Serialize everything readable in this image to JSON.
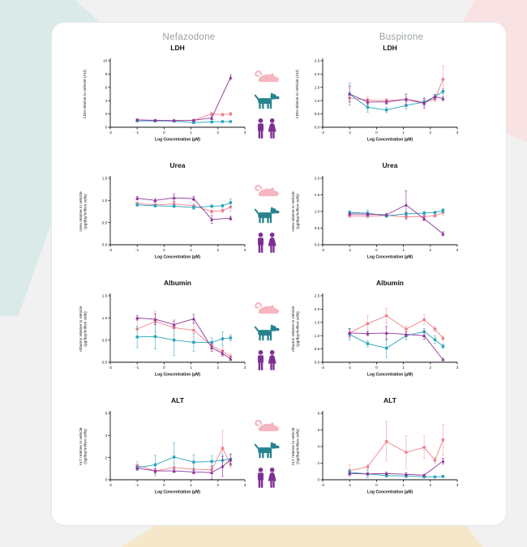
{
  "headers": {
    "left": "Nefazodone",
    "right": "Buspirone"
  },
  "palette": {
    "background": "#f1f1f1",
    "card": "#ffffff",
    "deco_teal": "#d9eae9",
    "deco_pink": "#f8e2e4",
    "deco_beige": "#f5e7c9",
    "header_gray": "#9aa0a5",
    "rat_series": "#f0808b",
    "dog_series": "#29a4ba",
    "human_series": "#8d3397",
    "rat_icon": "#f6b6c1",
    "dog_icon": "#27828e",
    "human_icon": "#7d3094"
  },
  "legend_icons": [
    {
      "name": "rat-icon",
      "species": "rat",
      "color": "#f6b6c1"
    },
    {
      "name": "dog-icon",
      "species": "dog",
      "color": "#27828e"
    },
    {
      "name": "human-pair-icon",
      "species": "human",
      "color": "#7d3094"
    }
  ],
  "chart_data": [
    {
      "type": "line",
      "drug": "Nefazodone",
      "title": "LDH",
      "xlabel": "Log Concentration (µM)",
      "ylabel_lines": [
        "LDH relative to Vehicle (AU)"
      ],
      "xlim": [
        -2,
        3
      ],
      "xticks": [
        "-2",
        "-1",
        "0",
        "1",
        "2",
        "3"
      ],
      "ylim": [
        0,
        10
      ],
      "yticks": [
        "0",
        "2",
        "4",
        "6",
        "8",
        "10"
      ],
      "grid": false,
      "legend": "species icons at right of figure row",
      "series": [
        {
          "name": "rat",
          "marker": "circle",
          "color": "#f0808b",
          "err_color": "#f6abb3",
          "x": [
            -1,
            -0.33,
            0.37,
            1.1,
            1.77,
            2.17,
            2.47
          ],
          "y": [
            1.1,
            1.0,
            1.0,
            1.05,
            2.0,
            1.9,
            2.0
          ],
          "err": [
            0.2,
            0.15,
            0.12,
            0.12,
            0.25,
            0.2,
            0.25
          ]
        },
        {
          "name": "dog",
          "marker": "square",
          "color": "#29a4ba",
          "err_color": "#59b9cb",
          "x": [
            -1,
            -0.33,
            0.37,
            1.1,
            1.77,
            2.17,
            2.47
          ],
          "y": [
            0.95,
            0.95,
            0.92,
            0.7,
            0.8,
            0.85,
            0.85
          ],
          "err": [
            0.12,
            0.1,
            0.1,
            0.1,
            0.1,
            0.1,
            0.1
          ]
        },
        {
          "name": "human",
          "marker": "triangle",
          "color": "#8d3397",
          "err_color": "#9a4aa3",
          "x": [
            -1,
            -0.33,
            0.37,
            1.1,
            1.77,
            2.47
          ],
          "y": [
            1.1,
            1.05,
            1.0,
            1.05,
            1.4,
            7.5
          ],
          "err": [
            0.12,
            0.1,
            0.1,
            0.1,
            0.25,
            0.35
          ]
        }
      ]
    },
    {
      "type": "line",
      "drug": "Buspirone",
      "title": "LDH",
      "xlabel": "Log Concentration (µM)",
      "ylabel_lines": [
        "LDH relative to Vehicle (AU)"
      ],
      "xlim": [
        -2,
        3
      ],
      "xticks": [
        "-2",
        "-1",
        "0",
        "1",
        "2",
        "3"
      ],
      "ylim": [
        0,
        2.5
      ],
      "yticks": [
        "0.0",
        "0.5",
        "1.0",
        "1.5",
        "2.0",
        "2.5"
      ],
      "grid": false,
      "series": [
        {
          "name": "rat",
          "marker": "circle",
          "color": "#f0808b",
          "err_color": "#f6abb3",
          "x": [
            -1,
            -0.33,
            0.37,
            1.1,
            1.77,
            2.17,
            2.47
          ],
          "y": [
            1.1,
            1.02,
            1.0,
            1.05,
            0.95,
            1.05,
            1.8
          ],
          "err": [
            0.12,
            0.15,
            0.08,
            0.08,
            0.1,
            0.08,
            0.5
          ]
        },
        {
          "name": "dog",
          "marker": "square",
          "color": "#29a4ba",
          "err_color": "#59b9cb",
          "x": [
            -1,
            -0.33,
            0.37,
            1.1,
            1.77,
            2.17,
            2.47
          ],
          "y": [
            1.25,
            0.75,
            0.65,
            0.82,
            0.95,
            1.15,
            1.35
          ],
          "err": [
            0.42,
            0.18,
            0.1,
            0.13,
            0.15,
            0.08,
            0.1
          ]
        },
        {
          "name": "human",
          "marker": "triangle",
          "color": "#8d3397",
          "err_color": "#9a4aa3",
          "x": [
            -1,
            -0.33,
            0.37,
            1.1,
            1.77,
            2.17,
            2.47
          ],
          "y": [
            1.25,
            0.95,
            0.95,
            1.05,
            0.9,
            1.15,
            1.08
          ],
          "err": [
            0.3,
            0.1,
            0.08,
            0.2,
            0.18,
            0.08,
            0.08
          ]
        }
      ]
    },
    {
      "type": "line",
      "drug": "Nefazodone",
      "title": "Urea",
      "xlabel": "Log Concentration (µM)",
      "ylabel_lines": [
        "Urea relative to Vehicle",
        "(µg/day/million cells)"
      ],
      "xlim": [
        -2,
        3
      ],
      "xticks": [
        "-2",
        "-1",
        "0",
        "1",
        "2",
        "3"
      ],
      "ylim": [
        0,
        1.5
      ],
      "yticks": [
        "0.0",
        "0.5",
        "1.0",
        "1.5"
      ],
      "grid": false,
      "series": [
        {
          "name": "rat",
          "marker": "circle",
          "color": "#f0808b",
          "err_color": "#f6abb3",
          "x": [
            -1,
            -0.33,
            0.37,
            1.1,
            1.77,
            2.17,
            2.47
          ],
          "y": [
            0.93,
            0.9,
            0.92,
            0.88,
            0.75,
            0.77,
            0.85
          ],
          "err": [
            0.03,
            0.03,
            0.05,
            0.06,
            0.04,
            0.04,
            0.09
          ]
        },
        {
          "name": "dog",
          "marker": "square",
          "color": "#29a4ba",
          "err_color": "#59b9cb",
          "x": [
            -1,
            -0.33,
            0.37,
            1.1,
            1.77,
            2.17,
            2.47
          ],
          "y": [
            0.9,
            0.88,
            0.87,
            0.84,
            0.87,
            0.88,
            0.95
          ],
          "err": [
            0.03,
            0.03,
            0.03,
            0.04,
            0.03,
            0.03,
            0.08
          ]
        },
        {
          "name": "human",
          "marker": "triangle",
          "color": "#8d3397",
          "err_color": "#9a4aa3",
          "x": [
            -1,
            -0.33,
            0.37,
            1.1,
            1.77,
            2.47
          ],
          "y": [
            1.05,
            1.0,
            1.06,
            1.04,
            0.57,
            0.6
          ],
          "err": [
            0.04,
            0.04,
            0.08,
            0.05,
            0.09,
            0.04
          ]
        }
      ]
    },
    {
      "type": "line",
      "drug": "Buspirone",
      "title": "Urea",
      "xlabel": "Log Concentration (µM)",
      "ylabel_lines": [
        "Urea relative to Vehicle",
        "(µg/day/million cells)"
      ],
      "xlim": [
        -2,
        3
      ],
      "xticks": [
        "-2",
        "-1",
        "0",
        "1",
        "2",
        "3"
      ],
      "ylim": [
        0,
        2
      ],
      "yticks": [
        "0.0",
        "0.5",
        "1.0",
        "1.5",
        "2.0"
      ],
      "grid": false,
      "series": [
        {
          "name": "rat",
          "marker": "circle",
          "color": "#f0808b",
          "err_color": "#f6abb3",
          "x": [
            -1,
            -0.33,
            0.37,
            1.1,
            1.77,
            2.17,
            2.47
          ],
          "y": [
            0.87,
            0.86,
            0.88,
            0.84,
            0.85,
            0.87,
            0.97
          ],
          "err": [
            0.05,
            0.06,
            0.04,
            0.04,
            0.04,
            0.04,
            0.08
          ]
        },
        {
          "name": "dog",
          "marker": "square",
          "color": "#29a4ba",
          "err_color": "#59b9cb",
          "x": [
            -1,
            -0.33,
            0.37,
            1.1,
            1.77,
            2.17,
            2.47
          ],
          "y": [
            0.97,
            0.95,
            0.87,
            0.93,
            0.95,
            0.97,
            1.03
          ],
          "err": [
            0.05,
            0.1,
            0.05,
            0.06,
            0.05,
            0.04,
            0.06
          ]
        },
        {
          "name": "human",
          "marker": "triangle",
          "color": "#8d3397",
          "err_color": "#9a4aa3",
          "x": [
            -1,
            -0.33,
            0.37,
            1.1,
            1.77,
            2.47
          ],
          "y": [
            0.93,
            0.92,
            0.9,
            1.2,
            0.78,
            0.33
          ],
          "err": [
            0.04,
            0.05,
            0.04,
            0.43,
            0.05,
            0.06
          ]
        }
      ]
    },
    {
      "type": "line",
      "drug": "Nefazodone",
      "title": "Albumin",
      "xlabel": "Log Concentration (µM)",
      "ylabel_lines": [
        "Albumin relative to Vehicle",
        "(µg/day/million cells)"
      ],
      "xlim": [
        -2,
        3
      ],
      "xticks": [
        "-2",
        "-1",
        "0",
        "1",
        "2",
        "3"
      ],
      "ylim": [
        0,
        1.5
      ],
      "yticks": [
        "0.0",
        "0.5",
        "1.0",
        "1.5"
      ],
      "grid": false,
      "series": [
        {
          "name": "rat",
          "marker": "circle",
          "color": "#f0808b",
          "err_color": "#f6abb3",
          "x": [
            -1,
            -0.33,
            0.37,
            1.1,
            1.77,
            2.17,
            2.47
          ],
          "y": [
            0.75,
            0.92,
            0.78,
            0.72,
            0.37,
            0.25,
            0.13
          ],
          "err": [
            0.2,
            0.23,
            0.18,
            0.15,
            0.1,
            0.09,
            0.06
          ]
        },
        {
          "name": "dog",
          "marker": "square",
          "color": "#29a4ba",
          "err_color": "#59b9cb",
          "x": [
            -1,
            -0.33,
            0.37,
            1.1,
            1.77,
            2.17,
            2.47
          ],
          "y": [
            0.57,
            0.58,
            0.5,
            0.45,
            0.45,
            0.53,
            0.55
          ],
          "err": [
            0.24,
            0.28,
            0.35,
            0.2,
            0.1,
            0.15,
            0.07
          ]
        },
        {
          "name": "human",
          "marker": "triangle",
          "color": "#8d3397",
          "err_color": "#9a4aa3",
          "x": [
            -1,
            -0.33,
            0.37,
            1.1,
            1.77,
            2.17,
            2.47
          ],
          "y": [
            1.0,
            0.97,
            0.85,
            0.98,
            0.33,
            0.2,
            0.07
          ],
          "err": [
            0.05,
            0.12,
            0.08,
            0.1,
            0.08,
            0.06,
            0.03
          ]
        }
      ]
    },
    {
      "type": "line",
      "drug": "Buspirone",
      "title": "Albumin",
      "xlabel": "Log Concentration (µM)",
      "ylabel_lines": [
        "Albumin relative to Vehicle",
        "(µg/day/million cells)"
      ],
      "xlim": [
        -2,
        3
      ],
      "xticks": [
        "-2",
        "-1",
        "0",
        "1",
        "2",
        "3"
      ],
      "ylim": [
        0,
        2.5
      ],
      "yticks": [
        "0.0",
        "0.5",
        "1.0",
        "1.5",
        "2.0",
        "2.5"
      ],
      "grid": false,
      "series": [
        {
          "name": "rat",
          "marker": "circle",
          "color": "#f0808b",
          "err_color": "#f6abb3",
          "x": [
            -1,
            -0.33,
            0.37,
            1.1,
            1.77,
            2.17,
            2.47
          ],
          "y": [
            1.1,
            1.45,
            1.75,
            1.25,
            1.6,
            1.25,
            0.9
          ],
          "err": [
            0.15,
            0.3,
            0.28,
            0.12,
            0.18,
            0.1,
            0.08
          ]
        },
        {
          "name": "dog",
          "marker": "square",
          "color": "#29a4ba",
          "err_color": "#59b9cb",
          "x": [
            -1,
            -0.33,
            0.37,
            1.1,
            1.77,
            2.17,
            2.47
          ],
          "y": [
            1.05,
            0.7,
            0.53,
            1.0,
            1.15,
            0.85,
            0.6
          ],
          "err": [
            0.22,
            0.12,
            0.35,
            0.15,
            0.12,
            0.15,
            0.08
          ]
        },
        {
          "name": "human",
          "marker": "triangle",
          "color": "#8d3397",
          "err_color": "#9a4aa3",
          "x": [
            -1,
            -0.33,
            0.37,
            1.1,
            1.77,
            2.47
          ],
          "y": [
            1.1,
            1.08,
            1.1,
            1.05,
            1.0,
            0.1
          ],
          "err": [
            0.15,
            0.08,
            0.25,
            0.1,
            0.13,
            0.04
          ]
        }
      ]
    },
    {
      "type": "line",
      "drug": "Nefazodone",
      "title": "ALT",
      "xlabel": "Log Concentration (µM)",
      "ylabel_lines": [
        "ALT relative to vehicle",
        "(ng/day/million cells)"
      ],
      "xlim": [
        -2,
        3
      ],
      "xticks": [
        "-2",
        "-1",
        "0",
        "1",
        "2",
        "3"
      ],
      "ylim": [
        0,
        6
      ],
      "yticks": [
        "0",
        "2",
        "4",
        "6"
      ],
      "grid": false,
      "series": [
        {
          "name": "rat",
          "marker": "circle",
          "color": "#f0808b",
          "err_color": "#f6abb3",
          "x": [
            -1,
            -0.33,
            0.37,
            1.1,
            1.77,
            2.17,
            2.47
          ],
          "y": [
            1.3,
            0.8,
            1.1,
            0.95,
            0.9,
            2.85,
            1.4
          ],
          "err": [
            0.35,
            0.5,
            0.4,
            0.45,
            0.35,
            1.6,
            0.3
          ]
        },
        {
          "name": "dog",
          "marker": "square",
          "color": "#29a4ba",
          "err_color": "#59b9cb",
          "x": [
            -1,
            -0.33,
            0.37,
            1.1,
            1.77,
            2.17,
            2.47
          ],
          "y": [
            1.1,
            1.35,
            2.05,
            1.6,
            1.65,
            1.75,
            1.85
          ],
          "err": [
            0.25,
            0.85,
            1.3,
            0.65,
            0.5,
            0.5,
            0.45
          ]
        },
        {
          "name": "human",
          "marker": "triangle",
          "color": "#8d3397",
          "err_color": "#9a4aa3",
          "x": [
            -1,
            -0.33,
            0.37,
            1.1,
            1.77,
            2.17,
            2.47
          ],
          "y": [
            1.05,
            0.8,
            0.8,
            0.7,
            0.65,
            1.2,
            1.8
          ],
          "err": [
            0.15,
            0.2,
            0.15,
            0.15,
            0.6,
            0.9,
            0.5
          ]
        }
      ]
    },
    {
      "type": "line",
      "drug": "Buspirone",
      "title": "ALT",
      "xlabel": "Log Concentration (µM)",
      "ylabel_lines": [
        "ALT relative to vehicle",
        "(ng/day/million cells)"
      ],
      "xlim": [
        -2,
        3
      ],
      "xticks": [
        "-2",
        "-1",
        "0",
        "1",
        "2",
        "3"
      ],
      "ylim": [
        0,
        8
      ],
      "yticks": [
        "0",
        "2",
        "4",
        "6",
        "8"
      ],
      "grid": false,
      "series": [
        {
          "name": "rat",
          "marker": "circle",
          "color": "#f0808b",
          "err_color": "#f6abb3",
          "x": [
            -1,
            -0.33,
            0.37,
            1.1,
            1.77,
            2.17,
            2.47
          ],
          "y": [
            1.1,
            1.55,
            4.6,
            3.3,
            3.9,
            2.35,
            4.8
          ],
          "err": [
            0.75,
            0.3,
            2.35,
            2.0,
            1.35,
            0.35,
            1.9
          ]
        },
        {
          "name": "dog",
          "marker": "square",
          "color": "#29a4ba",
          "err_color": "#59b9cb",
          "x": [
            -1,
            -0.33,
            0.37,
            1.1,
            1.77,
            2.17,
            2.47
          ],
          "y": [
            0.9,
            0.7,
            0.5,
            0.45,
            0.35,
            0.35,
            0.4
          ],
          "err": [
            0.35,
            0.45,
            0.2,
            0.2,
            0.12,
            0.1,
            0.12
          ]
        },
        {
          "name": "human",
          "marker": "triangle",
          "color": "#8d3397",
          "err_color": "#9a4aa3",
          "x": [
            -1,
            -0.33,
            0.37,
            1.1,
            1.77,
            2.47
          ],
          "y": [
            0.75,
            0.7,
            0.75,
            0.65,
            0.55,
            2.25
          ],
          "err": [
            0.2,
            0.1,
            0.15,
            0.2,
            0.1,
            0.35
          ]
        }
      ]
    }
  ]
}
